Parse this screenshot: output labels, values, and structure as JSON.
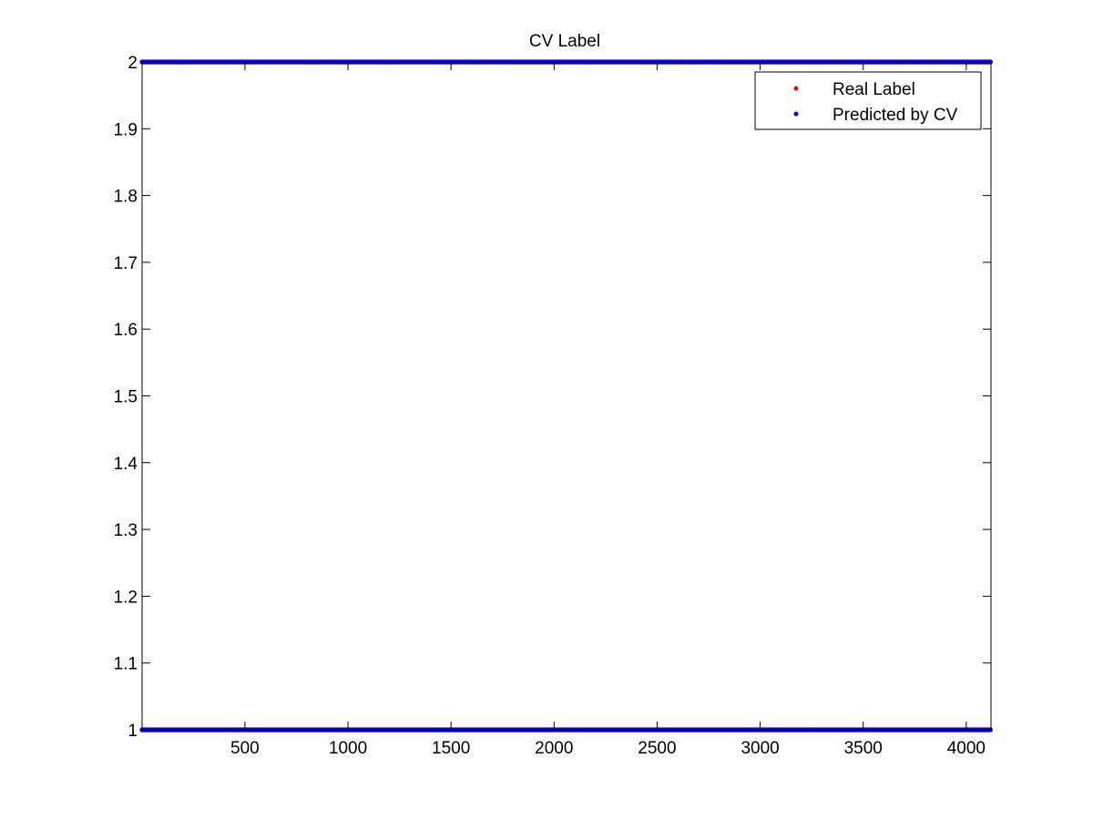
{
  "chart_data": {
    "type": "scatter",
    "title": "CV Label",
    "xlabel": "",
    "ylabel": "",
    "xlim": [
      1,
      4120
    ],
    "ylim": [
      1,
      2
    ],
    "xticks": [
      500,
      1000,
      1500,
      2000,
      2500,
      3000,
      3500,
      4000
    ],
    "yticks": [
      1,
      1.1,
      1.2,
      1.3,
      1.4,
      1.5,
      1.6,
      1.7,
      1.8,
      1.9,
      2
    ],
    "ytick_labels": [
      "1",
      "1.1",
      "1.2",
      "1.3",
      "1.4",
      "1.5",
      "1.6",
      "1.7",
      "1.8",
      "1.9",
      "2"
    ],
    "legend_position": "top-right",
    "grid": false,
    "n_points": 4120,
    "series": [
      {
        "name": "Real Label",
        "color": "#ff0000",
        "marker": "dot",
        "values_description_levels": [
          1,
          2
        ]
      },
      {
        "name": "Predicted by CV",
        "color": "#0000ff",
        "marker": "dot",
        "values_description_levels": [
          1,
          2
        ]
      }
    ]
  }
}
